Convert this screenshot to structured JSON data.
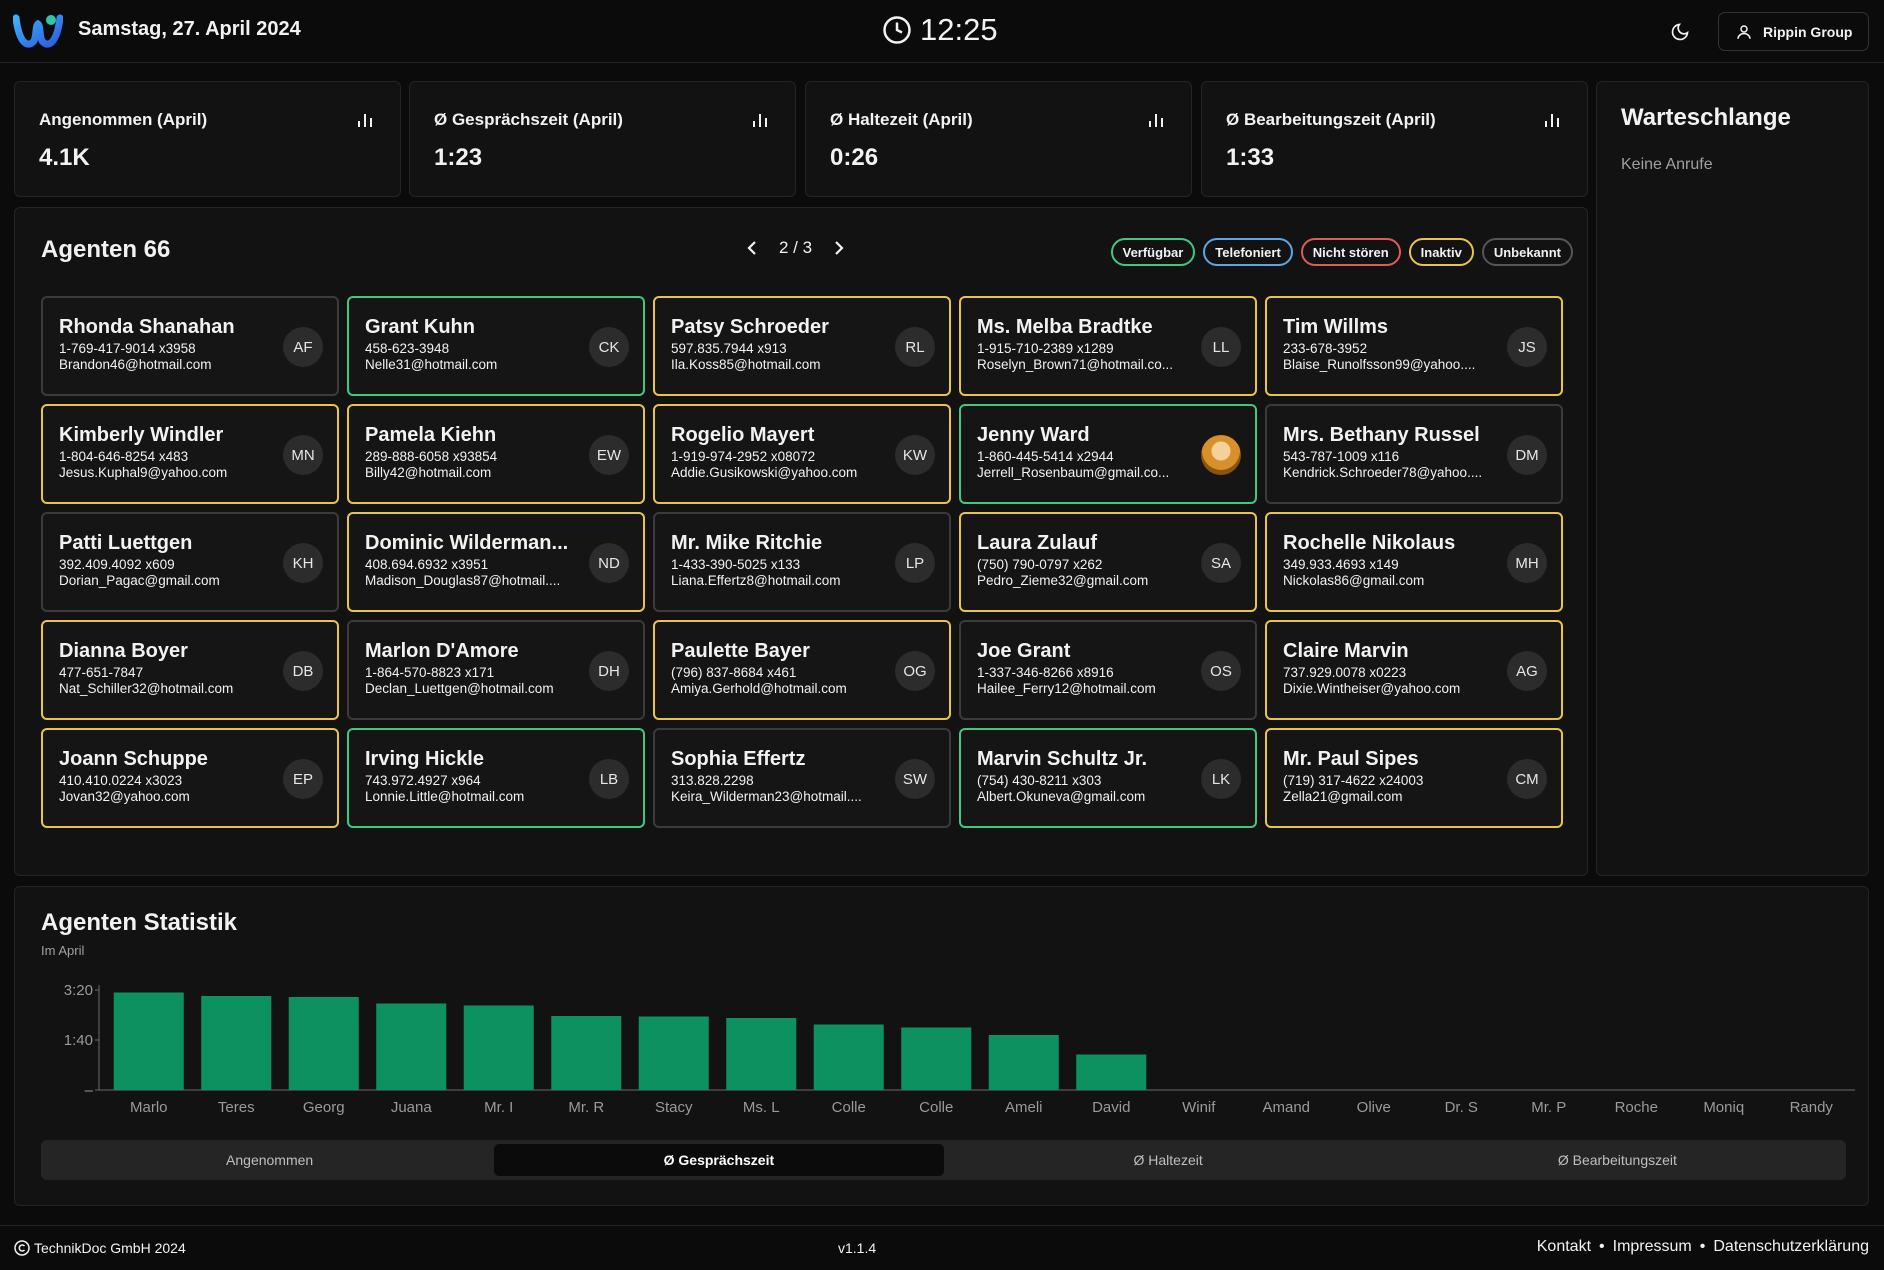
{
  "header": {
    "date": "Samstag, 27. April 2024",
    "time": "12:25",
    "user_label": "Rippin Group"
  },
  "kpis": [
    {
      "title": "Angenommen (April)",
      "value": "4.1K"
    },
    {
      "title": "Ø Gesprächszeit (April)",
      "value": "1:23"
    },
    {
      "title": "Ø Haltezeit (April)",
      "value": "0:26"
    },
    {
      "title": "Ø Bearbeitungszeit (April)",
      "value": "1:33"
    }
  ],
  "queue": {
    "title": "Warteschlange",
    "empty_text": "Keine Anrufe"
  },
  "agents": {
    "title": "Agenten 66",
    "page": "2 / 3",
    "legend": [
      {
        "label": "Verfügbar",
        "color": "#3ec97e"
      },
      {
        "label": "Telefoniert",
        "color": "#5aa8e6"
      },
      {
        "label": "Nicht stören",
        "color": "#e05a5a"
      },
      {
        "label": "Inaktiv",
        "color": "#e8c547"
      },
      {
        "label": "Unbekannt",
        "color": "#555555"
      }
    ],
    "list": [
      {
        "name": "Rhonda Shanahan",
        "phone": "1-769-417-9014 x3958",
        "email": "Brandon46@hotmail.com",
        "initials": "AF",
        "status": "unknown"
      },
      {
        "name": "Grant Kuhn",
        "phone": "458-623-3948",
        "email": "Nelle31@hotmail.com",
        "initials": "CK",
        "status": "available"
      },
      {
        "name": "Patsy Schroeder",
        "phone": "597.835.7944 x913",
        "email": "Ila.Koss85@hotmail.com",
        "initials": "RL",
        "status": "inactive"
      },
      {
        "name": "Ms. Melba Bradtke",
        "phone": "1-915-710-2389 x1289",
        "email": "Roselyn_Brown71@hotmail.co...",
        "initials": "LL",
        "status": "inactive"
      },
      {
        "name": "Tim Willms",
        "phone": "233-678-3952",
        "email": "Blaise_Runolfsson99@yahoo....",
        "initials": "JS",
        "status": "inactive"
      },
      {
        "name": "Kimberly Windler",
        "phone": "1-804-646-8254 x483",
        "email": "Jesus.Kuphal9@yahoo.com",
        "initials": "MN",
        "status": "inactive"
      },
      {
        "name": "Pamela Kiehn",
        "phone": "289-888-6058 x93854",
        "email": "Billy42@hotmail.com",
        "initials": "EW",
        "status": "inactive"
      },
      {
        "name": "Rogelio Mayert",
        "phone": "1-919-974-2952 x08072",
        "email": "Addie.Gusikowski@yahoo.com",
        "initials": "KW",
        "status": "inactive"
      },
      {
        "name": "Jenny Ward",
        "phone": "1-860-445-5414 x2944",
        "email": "Jerrell_Rosenbaum@gmail.co...",
        "initials": "",
        "photo": true,
        "status": "available"
      },
      {
        "name": "Mrs. Bethany Russel",
        "phone": "543-787-1009 x116",
        "email": "Kendrick.Schroeder78@yahoo....",
        "initials": "DM",
        "status": "unknown"
      },
      {
        "name": "Patti Luettgen",
        "phone": "392.409.4092 x609",
        "email": "Dorian_Pagac@gmail.com",
        "initials": "KH",
        "status": "unknown"
      },
      {
        "name": "Dominic Wilderman...",
        "phone": "408.694.6932 x3951",
        "email": "Madison_Douglas87@hotmail....",
        "initials": "ND",
        "status": "inactive"
      },
      {
        "name": "Mr. Mike Ritchie",
        "phone": "1-433-390-5025 x133",
        "email": "Liana.Effertz8@hotmail.com",
        "initials": "LP",
        "status": "unknown"
      },
      {
        "name": "Laura Zulauf",
        "phone": "(750) 790-0797 x262",
        "email": "Pedro_Zieme32@gmail.com",
        "initials": "SA",
        "status": "inactive"
      },
      {
        "name": "Rochelle Nikolaus",
        "phone": "349.933.4693 x149",
        "email": "Nickolas86@gmail.com",
        "initials": "MH",
        "status": "inactive"
      },
      {
        "name": "Dianna Boyer",
        "phone": "477-651-7847",
        "email": "Nat_Schiller32@hotmail.com",
        "initials": "DB",
        "status": "inactive"
      },
      {
        "name": "Marlon D'Amore",
        "phone": "1-864-570-8823 x171",
        "email": "Declan_Luettgen@hotmail.com",
        "initials": "DH",
        "status": "unknown"
      },
      {
        "name": "Paulette Bayer",
        "phone": "(796) 837-8684 x461",
        "email": "Amiya.Gerhold@hotmail.com",
        "initials": "OG",
        "status": "inactive"
      },
      {
        "name": "Joe Grant",
        "phone": "1-337-346-8266 x8916",
        "email": "Hailee_Ferry12@hotmail.com",
        "initials": "OS",
        "status": "unknown"
      },
      {
        "name": "Claire Marvin",
        "phone": "737.929.0078 x0223",
        "email": "Dixie.Wintheiser@yahoo.com",
        "initials": "AG",
        "status": "inactive"
      },
      {
        "name": "Joann Schuppe",
        "phone": "410.410.0224 x3023",
        "email": "Jovan32@yahoo.com",
        "initials": "EP",
        "status": "inactive"
      },
      {
        "name": "Irving Hickle",
        "phone": "743.972.4927 x964",
        "email": "Lonnie.Little@hotmail.com",
        "initials": "LB",
        "status": "available"
      },
      {
        "name": "Sophia Effertz",
        "phone": "313.828.2298",
        "email": "Keira_Wilderman23@hotmail....",
        "initials": "SW",
        "status": "unknown"
      },
      {
        "name": "Marvin Schultz Jr.",
        "phone": "(754) 430-8211 x303",
        "email": "Albert.Okuneva@gmail.com",
        "initials": "LK",
        "status": "available"
      },
      {
        "name": "Mr. Paul Sipes",
        "phone": "(719) 317-4622 x24003",
        "email": "Zella21@gmail.com",
        "initials": "CM",
        "status": "inactive"
      }
    ]
  },
  "status_colors": {
    "available": "#3ec97e",
    "inactive": "#e8c547",
    "unknown": "#3b3b3b"
  },
  "stats": {
    "title": "Agenten Statistik",
    "subtitle": "Im April",
    "tabs": [
      "Angenommen",
      "Ø Gesprächszeit",
      "Ø Haltezeit",
      "Ø Bearbeitungszeit"
    ],
    "active_tab": 1
  },
  "chart_data": {
    "type": "bar",
    "categories": [
      "Marlo",
      "Teres",
      "Georg",
      "Juana",
      "Mr. I",
      "Mr. R",
      "Stacy",
      "Ms. L",
      "Colle",
      "Colle",
      "Ameli",
      "David",
      "Winif",
      "Amand",
      "Olive",
      "Dr. S",
      "Mr. P",
      "Roche",
      "Moniq",
      "Randy"
    ],
    "values": [
      195,
      188,
      186,
      173,
      169,
      148,
      147,
      144,
      131,
      125,
      110,
      71,
      0,
      0,
      0,
      0,
      0,
      0,
      0,
      0
    ],
    "ytick_labels": [
      "–",
      "1:40",
      "3:20"
    ],
    "yticks": [
      0,
      100,
      200
    ],
    "ylim": [
      0,
      210
    ],
    "color": "#0e9160"
  },
  "footer": {
    "copyright": "TechnikDoc GmbH 2024",
    "version": "v1.1.4",
    "links": [
      "Kontakt",
      "Impressum",
      "Datenschutzerklärung"
    ]
  }
}
